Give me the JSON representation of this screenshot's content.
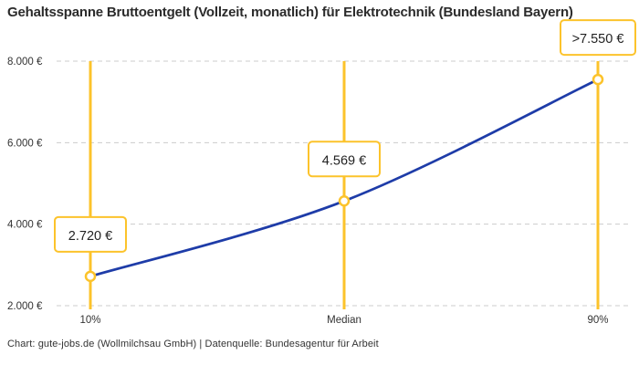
{
  "title": "Gehaltsspanne Bruttoentgelt (Vollzeit, monatlich) für Elektrotechnik (Bundesland Bayern)",
  "footer": "Chart: gute-jobs.de (Wollmilchsau GmbH) | Datenquelle: Bundesagentur für Arbeit",
  "chart_data": {
    "type": "line",
    "categories": [
      "10%",
      "Median",
      "90%"
    ],
    "values": [
      2720,
      4569,
      7550
    ],
    "point_labels": [
      "2.720 €",
      "4.569 €",
      ">7.550 €"
    ],
    "ylim": [
      2000,
      8000
    ],
    "yticks": [
      2000,
      4000,
      6000,
      8000
    ],
    "ytick_labels": [
      "2.000 €",
      "4.000 €",
      "6.000 €",
      "8.000 €"
    ],
    "grid": true,
    "legend": "none",
    "colors": {
      "line": "#1E3CA8",
      "accent": "#FCC32B",
      "grid": "#CCCCCC",
      "axis_text": "#333333",
      "title_text": "#2B2B2B",
      "label_text": "#222222",
      "box_fill": "#FFFFFF"
    }
  }
}
